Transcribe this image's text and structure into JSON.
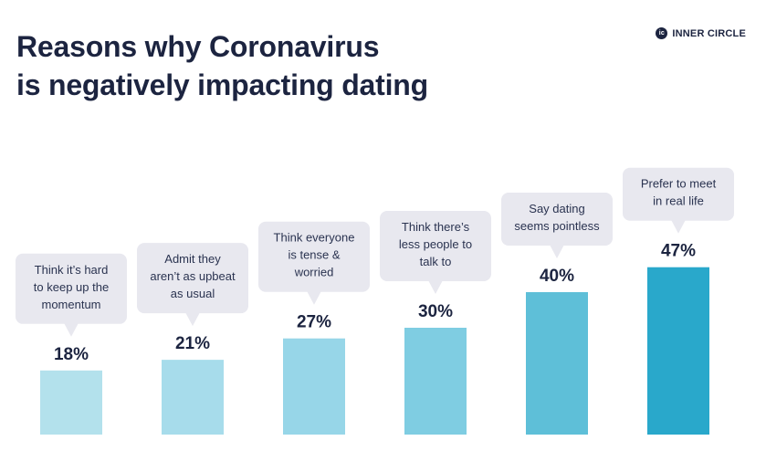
{
  "title_lines": [
    "Reasons why Coronavirus",
    "is negatively impacting dating"
  ],
  "brand": {
    "name": "INNER CIRCLE",
    "mark_text": "ic"
  },
  "chart_data": {
    "type": "bar",
    "title": "Reasons why Coronavirus is negatively impacting dating",
    "unit": "%",
    "ylim": [
      0,
      50
    ],
    "grid": false,
    "categories": [
      "Think it's hard to keep up the momentum",
      "Admit they aren't as upbeat as usual",
      "Think everyone is tense & worried",
      "Think there's less people to talk to",
      "Say dating seems pointless",
      "Prefer to meet in real life"
    ],
    "category_lines": [
      [
        "Think it’s hard",
        "to keep up the",
        "momentum"
      ],
      [
        "Admit they",
        "aren’t as upbeat",
        "as usual"
      ],
      [
        "Think everyone",
        "is tense &",
        "worried"
      ],
      [
        "Think there’s",
        "less people to",
        "talk to"
      ],
      [
        "Say dating",
        "seems pointless"
      ],
      [
        "Prefer to meet",
        "in real life"
      ]
    ],
    "values": [
      18,
      21,
      27,
      30,
      40,
      47
    ],
    "value_labels": [
      "18%",
      "21%",
      "27%",
      "30%",
      "40%",
      "47%"
    ],
    "bar_colors": [
      "#b3e1ec",
      "#a7dceb",
      "#97d6e8",
      "#7fcde2",
      "#5ebfd8",
      "#29a8cb"
    ],
    "bubble_color": "#e8e8ef"
  }
}
